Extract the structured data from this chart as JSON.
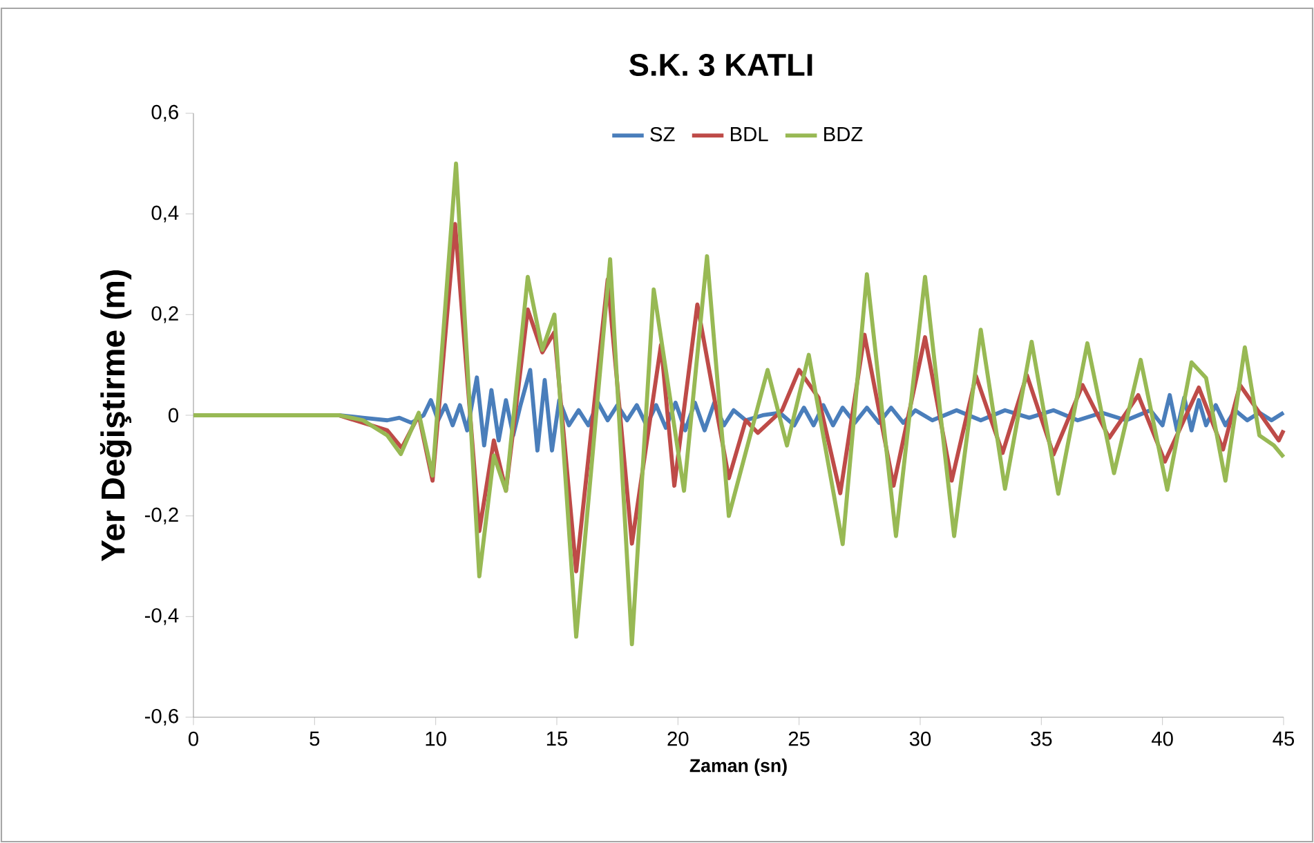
{
  "chart_data": {
    "type": "line",
    "title": "S.K. 3 KATLI",
    "xlabel": "Zaman (sn)",
    "ylabel": "Yer Değiştirme (m)",
    "xlim": [
      0,
      45
    ],
    "xticks": [
      0,
      5,
      10,
      15,
      20,
      25,
      30,
      35,
      40,
      45
    ],
    "ylim": [
      -0.6,
      0.6
    ],
    "yticks": [
      {
        "value": -0.6,
        "label": "-0,6"
      },
      {
        "value": -0.4,
        "label": "-0,4"
      },
      {
        "value": -0.2,
        "label": "-0,2"
      },
      0,
      {
        "value": 0.2,
        "label": "0,2"
      },
      {
        "value": 0.4,
        "label": "0,4"
      },
      {
        "value": 0.6,
        "label": "0,6"
      }
    ],
    "grid": false,
    "legend": "top",
    "marker": "none",
    "line_style": "solid",
    "series": [
      {
        "name": "SZ",
        "color": "#4a7ebb",
        "x": [
          0,
          6,
          7,
          8,
          8.5,
          9,
          9.5,
          9.8,
          10.1,
          10.4,
          10.7,
          11.0,
          11.3,
          11.7,
          12.0,
          12.3,
          12.6,
          12.9,
          13.2,
          13.5,
          13.9,
          14.2,
          14.5,
          14.8,
          15.1,
          15.5,
          15.9,
          16.3,
          16.7,
          17.1,
          17.5,
          17.9,
          18.3,
          18.7,
          19.1,
          19.5,
          19.9,
          20.3,
          20.7,
          21.1,
          21.5,
          21.9,
          22.3,
          22.8,
          23.5,
          24.2,
          24.8,
          25.2,
          25.6,
          26.0,
          26.4,
          26.8,
          27.3,
          27.8,
          28.3,
          28.8,
          29.3,
          29.8,
          30.5,
          31.5,
          32.5,
          33.5,
          34.5,
          35.5,
          36.5,
          37.5,
          38.5,
          39.5,
          40.0,
          40.3,
          40.6,
          40.9,
          41.2,
          41.5,
          41.8,
          42.2,
          42.6,
          43.0,
          43.5,
          44.0,
          44.5,
          45
        ],
        "values": [
          0,
          0,
          -0.005,
          -0.01,
          -0.005,
          -0.015,
          0.0,
          0.03,
          -0.01,
          0.02,
          -0.02,
          0.02,
          -0.03,
          0.075,
          -0.06,
          0.05,
          -0.05,
          0.03,
          -0.04,
          0.02,
          0.09,
          -0.07,
          0.07,
          -0.07,
          0.03,
          -0.02,
          0.01,
          -0.02,
          0.025,
          -0.01,
          0.02,
          -0.01,
          0.02,
          -0.02,
          0.02,
          -0.025,
          0.025,
          -0.03,
          0.025,
          -0.03,
          0.025,
          -0.02,
          0.01,
          -0.01,
          0.0,
          0.005,
          -0.02,
          0.015,
          -0.02,
          0.02,
          -0.02,
          0.015,
          -0.015,
          0.015,
          -0.015,
          0.015,
          -0.015,
          0.01,
          -0.01,
          0.01,
          -0.01,
          0.01,
          -0.005,
          0.01,
          -0.01,
          0.005,
          -0.01,
          0.01,
          -0.02,
          0.04,
          -0.03,
          0.035,
          -0.03,
          0.03,
          -0.02,
          0.02,
          -0.02,
          0.01,
          -0.01,
          0.005,
          -0.01,
          0.005
        ]
      },
      {
        "name": "BDL",
        "color": "#be4b48",
        "x": [
          0,
          6,
          8,
          8.6,
          9.3,
          9.87,
          10.8,
          11.8,
          12.4,
          12.9,
          13.8,
          14.4,
          14.9,
          15.8,
          17.1,
          18.1,
          19.3,
          19.85,
          20.8,
          22.1,
          22.8,
          23.3,
          24.3,
          25.0,
          25.8,
          26.7,
          27.7,
          28.9,
          30.2,
          31.3,
          32.3,
          33.4,
          34.4,
          35.5,
          36.7,
          37.8,
          39.0,
          40.1,
          41.5,
          42.5,
          43.2,
          44.8,
          45
        ],
        "values": [
          0,
          0,
          -0.03,
          -0.065,
          0.0,
          -0.13,
          0.38,
          -0.23,
          -0.05,
          -0.15,
          0.21,
          0.125,
          0.165,
          -0.31,
          0.27,
          -0.255,
          0.14,
          -0.14,
          0.22,
          -0.125,
          -0.01,
          -0.035,
          0.01,
          0.09,
          0.035,
          -0.155,
          0.16,
          -0.14,
          0.155,
          -0.13,
          0.078,
          -0.075,
          0.08,
          -0.078,
          0.06,
          -0.045,
          0.04,
          -0.092,
          0.055,
          -0.068,
          0.06,
          -0.05,
          -0.03
        ]
      },
      {
        "name": "BDZ",
        "color": "#98b954",
        "x": [
          0,
          6,
          7,
          8,
          8.56,
          9.3,
          9.87,
          10.84,
          11.8,
          12.4,
          12.9,
          13.8,
          14.4,
          14.9,
          15.8,
          17.2,
          18.1,
          19.0,
          20.25,
          21.2,
          22.1,
          23.7,
          24.5,
          25.4,
          26.8,
          27.8,
          29.0,
          30.2,
          31.4,
          32.5,
          33.5,
          34.6,
          35.7,
          36.9,
          38.0,
          39.1,
          40.2,
          41.2,
          41.8,
          42.6,
          43.4,
          44.0,
          44.6,
          45
        ],
        "values": [
          0,
          0,
          -0.01,
          -0.04,
          -0.077,
          0.005,
          -0.12,
          0.5,
          -0.32,
          -0.08,
          -0.15,
          0.275,
          0.13,
          0.2,
          -0.44,
          0.31,
          -0.455,
          0.25,
          -0.15,
          0.316,
          -0.2,
          0.09,
          -0.06,
          0.12,
          -0.256,
          0.28,
          -0.24,
          0.275,
          -0.24,
          0.17,
          -0.146,
          0.146,
          -0.156,
          0.143,
          -0.115,
          0.11,
          -0.148,
          0.105,
          0.074,
          -0.13,
          0.135,
          -0.04,
          -0.06,
          -0.083
        ]
      }
    ]
  }
}
